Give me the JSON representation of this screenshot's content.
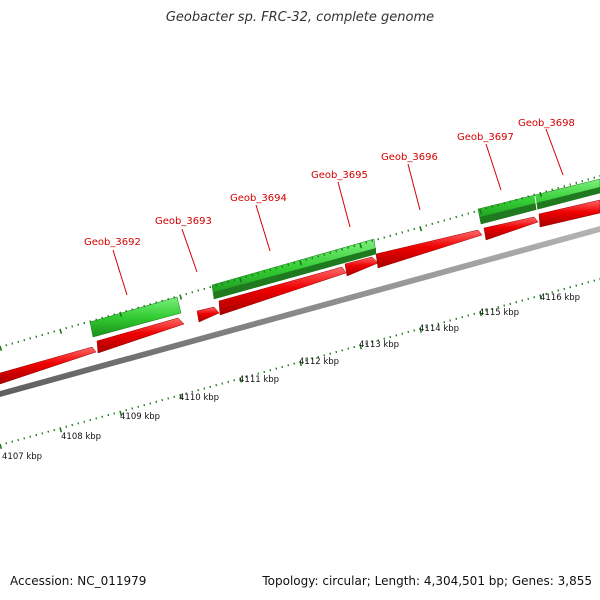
{
  "title": "Geobacter sp. FRC-32, complete genome",
  "footer": {
    "accession": "Accession: NC_011979",
    "summary": "Topology: circular; Length: 4,304,501 bp; Genes: 3,855"
  },
  "kbp_labels": [
    "4107 kbp",
    "4108 kbp",
    "4109 kbp",
    "4110 kbp",
    "4111 kbp",
    "4112 kbp",
    "4113 kbp",
    "4114 kbp",
    "4115 kbp",
    "4116 kbp"
  ],
  "gene_labels": [
    "Geob_3692",
    "Geob_3693",
    "Geob_3694",
    "Geob_3695",
    "Geob_3696",
    "Geob_3697",
    "Geob_3698"
  ],
  "colors": {
    "forward_gene": "#e00000",
    "reverse_gene": "#2bc42b",
    "backbone": "#888888",
    "label": "#d40000",
    "tick": "#1a7a1a"
  }
}
